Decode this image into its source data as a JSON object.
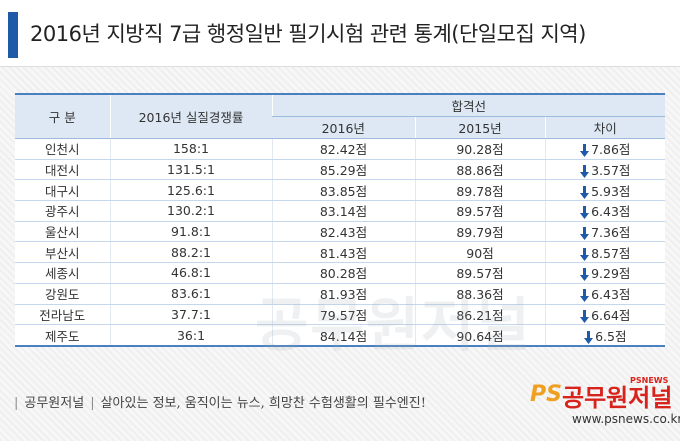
{
  "header": {
    "title": "2016년 지방직 7급 행정일반 필기시험 관련 통계(단일모집 지역)"
  },
  "watermark": "공무원저널",
  "table": {
    "columns": {
      "region": "구 분",
      "ratio": "2016년 실질경쟁률",
      "group": "합격선",
      "y2016": "2016년",
      "y2015": "2015년",
      "diff": "차이"
    },
    "rows": [
      [
        "인천시",
        "158:1",
        "82.42점",
        "90.28점",
        "7.86점"
      ],
      [
        "대전시",
        "131.5:1",
        "85.29점",
        "88.86점",
        "3.57점"
      ],
      [
        "대구시",
        "125.6:1",
        "83.85점",
        "89.78점",
        "5.93점"
      ],
      [
        "광주시",
        "130.2:1",
        "83.14점",
        "89.57점",
        "6.43점"
      ],
      [
        "울산시",
        "91.8:1",
        "82.43점",
        "89.79점",
        "7.36점"
      ],
      [
        "부산시",
        "88.2:1",
        "81.43점",
        "90점",
        "8.57점"
      ],
      [
        "세종시",
        "46.8:1",
        "80.28점",
        "89.57점",
        "9.29점"
      ],
      [
        "강원도",
        "83.6:1",
        "81.93점",
        "88.36점",
        "6.43점"
      ],
      [
        "전라남도",
        "37.7:1",
        "79.57점",
        "86.21점",
        "6.64점"
      ],
      [
        "제주도",
        "36:1",
        "84.14점",
        "90.64점",
        "6.5점"
      ]
    ]
  },
  "footer": {
    "brand": "공무원저널",
    "slogan": "살아있는 정보, 움직이는 뉴스, 희망찬 수험생활의 필수엔진!",
    "logo_ps": "PS",
    "logo_name": "공무원저널",
    "logo_news": "PSNEWS",
    "url": "www.psnews.co.kr"
  }
}
